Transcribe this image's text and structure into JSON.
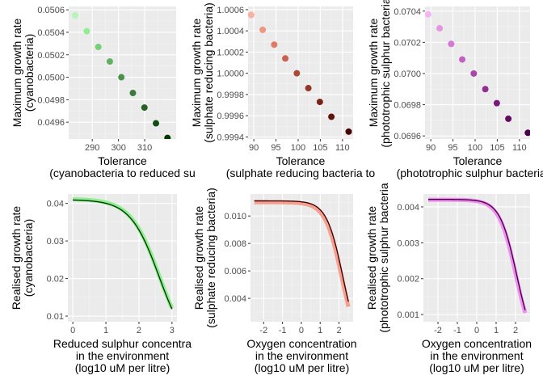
{
  "colors": {
    "panel_bg": "#ebebeb",
    "grid_major": "#ffffff",
    "grid_minor": "#f5f5f5"
  },
  "chart_data": [
    {
      "type": "scatter",
      "xlabel": [
        "Tolerance",
        "(cyanobacteria to reduced su"
      ],
      "ylabel": [
        "Maximum growth rate",
        "(cyanobacteria)"
      ],
      "xlim": [
        281,
        322
      ],
      "ylim": [
        0.04945,
        0.05063
      ],
      "xticks": [
        290,
        300,
        310
      ],
      "xtick_labels": [
        "290",
        "300",
        "310"
      ],
      "yticks": [
        0.0496,
        0.0498,
        0.05,
        0.0502,
        0.0504,
        0.0506
      ],
      "ytick_labels": [
        "0.0496",
        "0.0498",
        "0.0500",
        "0.0502",
        "0.0504",
        "0.0506"
      ],
      "x": [
        283.5,
        287.9,
        292.3,
        296.7,
        301.1,
        305.5,
        309.9,
        314.3,
        318.7
      ],
      "y": [
        0.05055,
        0.05041,
        0.05027,
        0.05014,
        0.05,
        0.04986,
        0.04973,
        0.04959,
        0.04946
      ],
      "colors": [
        "#b5f5b5",
        "#90ee90",
        "#79cf79",
        "#62b062",
        "#4a914a",
        "#3b7a3b",
        "#256225",
        "#134d13",
        "#003a00"
      ]
    },
    {
      "type": "scatter",
      "xlabel": [
        "Tolerance",
        "(sulphate reducing bacteria to"
      ],
      "ylabel": [
        "Maximum growth rate",
        "(sulphate reducing bacteria)"
      ],
      "xlim": [
        88.7,
        112.4
      ],
      "ylim": [
        0.99938,
        1.00063
      ],
      "xticks": [
        90,
        95,
        100,
        105,
        110
      ],
      "xtick_labels": [
        "90",
        "95",
        "100",
        "105",
        "110"
      ],
      "yticks": [
        0.9994,
        0.9996,
        0.9998,
        1.0,
        1.0002,
        1.0004,
        1.0006
      ],
      "ytick_labels": [
        "0.9994",
        "0.9996",
        "0.9998",
        "1.0000",
        "1.0002",
        "1.0004",
        "1.0006"
      ],
      "x": [
        89.4,
        92.0,
        94.6,
        97.1,
        99.7,
        102.3,
        104.9,
        107.5,
        111.4
      ],
      "y": [
        1.00055,
        1.00041,
        1.00027,
        1.00014,
        1.0,
        0.99986,
        0.99973,
        0.99959,
        0.99945
      ],
      "colors": [
        "#fab0a0",
        "#f19482",
        "#e07a68",
        "#c96050",
        "#b04838",
        "#963626",
        "#7c2218",
        "#61120a",
        "#460202"
      ]
    },
    {
      "type": "scatter",
      "xlabel": [
        "Tolerance",
        "(phototrophic sulphur bacteria to"
      ],
      "ylabel": [
        "Maximum growth rate",
        "(phototrophic sulphur bacteria"
      ],
      "xlim": [
        88.7,
        112.4
      ],
      "ylim": [
        0.06958,
        0.07043
      ],
      "xticks": [
        90,
        95,
        100,
        105,
        110
      ],
      "xtick_labels": [
        "90",
        "95",
        "100",
        "105",
        "110"
      ],
      "yticks": [
        0.0696,
        0.0698,
        0.07,
        0.0702,
        0.0704
      ],
      "ytick_labels": [
        "0.0696",
        "0.0698",
        "0.0700",
        "0.0702",
        "0.0704"
      ],
      "x": [
        89.4,
        92.0,
        94.6,
        97.1,
        99.7,
        102.3,
        104.9,
        107.5,
        111.9
      ],
      "y": [
        0.07038,
        0.07029,
        0.07019,
        0.07009,
        0.07,
        0.0699,
        0.06981,
        0.06971,
        0.06962
      ],
      "colors": [
        "#f5b3f5",
        "#e496e4",
        "#d37ad3",
        "#c25fc2",
        "#aa45aa",
        "#922e92",
        "#7a1a7a",
        "#630a63",
        "#4c004c"
      ]
    },
    {
      "type": "line",
      "xlabel": [
        "Reduced sulphur concentra",
        "in the environment",
        "(log10 uM per litre)"
      ],
      "ylabel": [
        "Realised growth rate",
        "(cyanobacteria)"
      ],
      "xlim": [
        -0.15,
        3.15
      ],
      "ylim": [
        0.0085,
        0.0425
      ],
      "xticks": [
        0,
        1,
        2,
        3
      ],
      "xtick_labels": [
        "0",
        "1",
        "2",
        "3"
      ],
      "yticks": [
        0.01,
        0.02,
        0.03,
        0.04
      ],
      "ytick_labels": [
        "0.01",
        "0.02",
        "0.03",
        "0.04"
      ],
      "series": [
        {
          "k": 0.0412,
          "p": 2.62,
          "x_range": [
            0,
            3
          ],
          "color": "#90ee90"
        },
        {
          "k": 0.041,
          "p": 2.61,
          "x_range": [
            0,
            3
          ],
          "color": "#003a00"
        }
      ]
    },
    {
      "type": "line",
      "xlabel": [
        "Oxygen concentration",
        "in the environment",
        "(log10 uM per litre)"
      ],
      "ylabel": [
        "Realised growth rate",
        "(sulphate reducing bacteria)"
      ],
      "xlim": [
        -2.7,
        2.75
      ],
      "ylim": [
        0.0023,
        0.0116
      ],
      "xticks": [
        -2,
        -1,
        0,
        1,
        2
      ],
      "xtick_labels": [
        "-2",
        "-1",
        "0",
        "1",
        "2"
      ],
      "yticks": [
        0.004,
        0.006,
        0.008,
        0.01
      ],
      "ytick_labels": [
        "0.004",
        "0.006",
        "0.008",
        "0.010"
      ],
      "series": [
        {
          "k": 0.011,
          "p": 2.15,
          "x_range": [
            -2.5,
            2.5
          ],
          "color": "#f4a090"
        },
        {
          "k": 0.0111,
          "p": 2.21,
          "x_range": [
            -2.5,
            2.5
          ],
          "color": "#460202"
        }
      ]
    },
    {
      "type": "line",
      "xlabel": [
        "Oxygen concentration",
        "in the environment",
        "(log10 uM per litre)"
      ],
      "ylabel": [
        "Realised growth rate",
        "(phototrophic sulphur bacteria"
      ],
      "xlim": [
        -2.75,
        2.75
      ],
      "ylim": [
        0.0008,
        0.00436
      ],
      "xticks": [
        -2,
        -1,
        0,
        1,
        2
      ],
      "xtick_labels": [
        "-2",
        "-1",
        "0",
        "1",
        "2"
      ],
      "yticks": [
        0.001,
        0.002,
        0.003,
        0.004
      ],
      "ytick_labels": [
        "0.001",
        "0.002",
        "0.003",
        "0.004"
      ],
      "series": [
        {
          "k": 0.0042,
          "p": 2.02,
          "x_range": [
            -2.5,
            2.5
          ],
          "color": "#ee90ee"
        },
        {
          "k": 0.00421,
          "p": 2.06,
          "x_range": [
            -2.5,
            2.5
          ],
          "color": "#4c004c"
        }
      ]
    }
  ]
}
